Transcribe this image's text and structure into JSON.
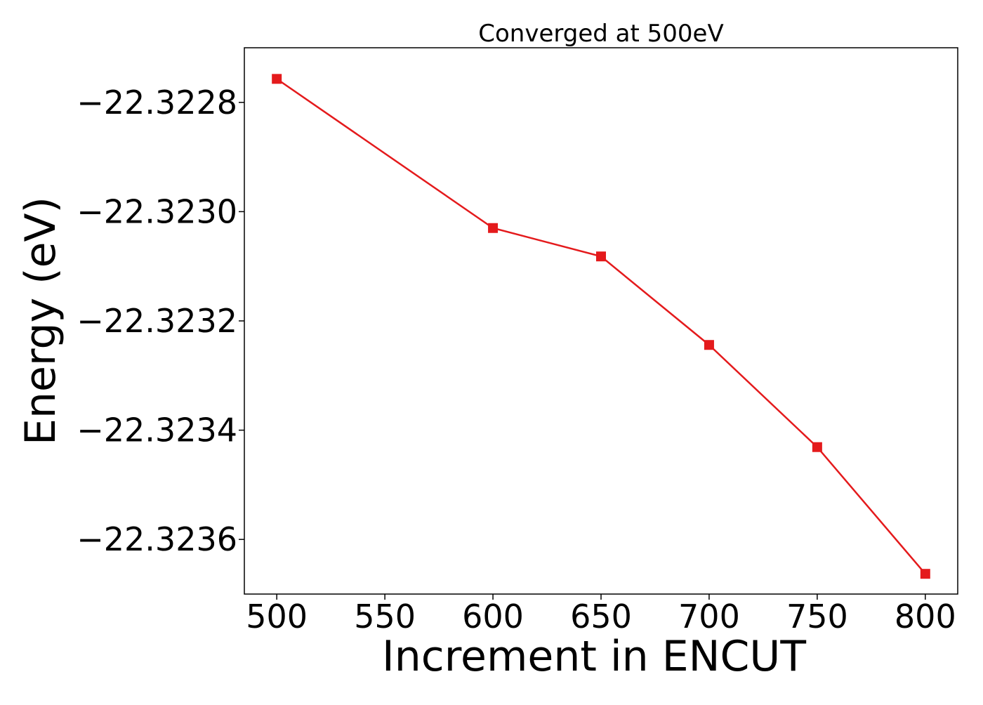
{
  "chart_data": {
    "type": "line",
    "title": "Converged at 500eV",
    "xlabel": "Increment in ENCUT",
    "ylabel": "Energy (eV)",
    "xlim": [
      485,
      815
    ],
    "ylim": [
      -22.3237,
      -22.3227
    ],
    "xticks": [
      500,
      550,
      600,
      650,
      700,
      750,
      800
    ],
    "xtick_labels": [
      "500",
      "550",
      "600",
      "650",
      "700",
      "750",
      "800"
    ],
    "yticks": [
      -22.3228,
      -22.323,
      -22.3232,
      -22.3234,
      -22.3236
    ],
    "ytick_labels": [
      "−22.3228",
      "−22.3230",
      "−22.3232",
      "−22.3234",
      "−22.3236"
    ],
    "grid": false,
    "series": [
      {
        "x": [
          500,
          600,
          650,
          700,
          750,
          800
        ],
        "y": [
          -22.322757,
          -22.32303,
          -22.323082,
          -22.323244,
          -22.323431,
          -22.323663
        ],
        "color": "#e41a1c",
        "marker": "square"
      }
    ]
  }
}
